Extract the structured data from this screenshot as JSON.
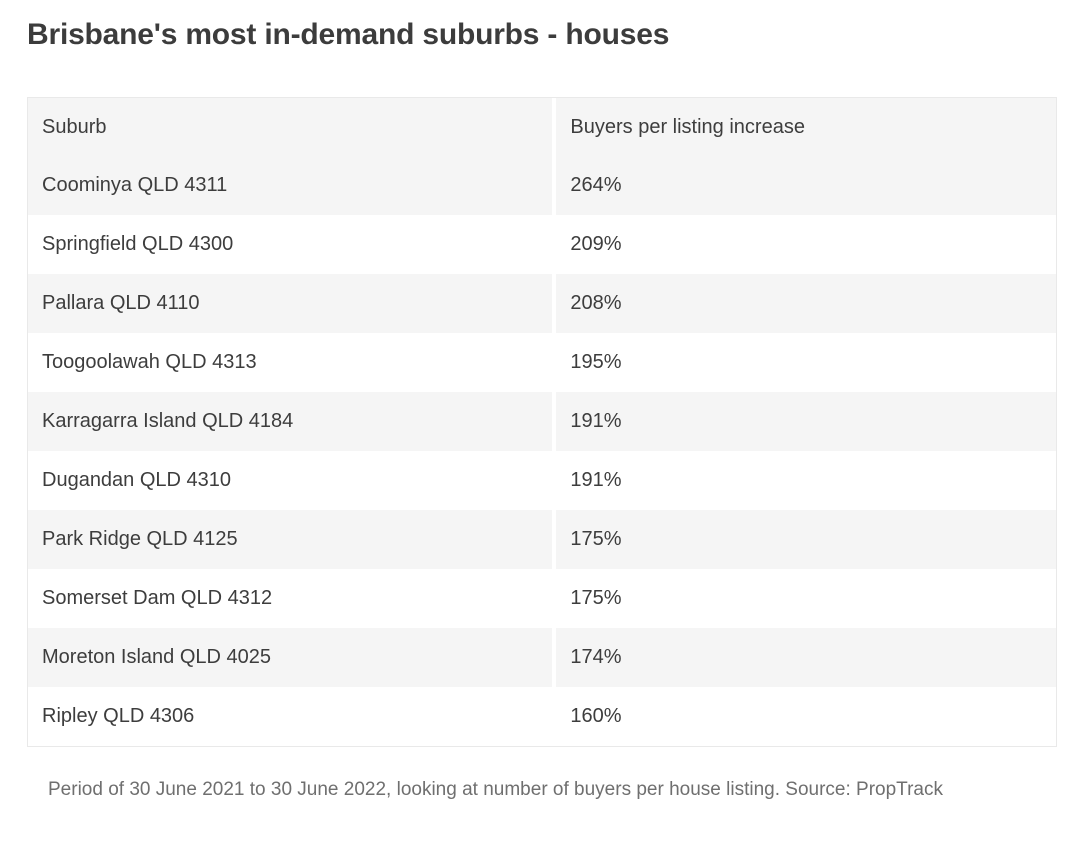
{
  "page": {
    "title": "Brisbane's most in-demand suburbs - houses",
    "caption": "Period of 30 June 2021 to 30 June 2022, looking at number of buyers per house listing. Source: PropTrack"
  },
  "table": {
    "columns": [
      "Suburb",
      "Buyers per listing increase"
    ],
    "rows": [
      {
        "suburb": "Coominya QLD 4311",
        "increase": "264%"
      },
      {
        "suburb": "Springfield QLD 4300",
        "increase": "209%"
      },
      {
        "suburb": "Pallara QLD 4110",
        "increase": "208%"
      },
      {
        "suburb": "Toogoolawah QLD 4313",
        "increase": "195%"
      },
      {
        "suburb": "Karragarra Island QLD 4184",
        "increase": "191%"
      },
      {
        "suburb": "Dugandan QLD 4310",
        "increase": "191%"
      },
      {
        "suburb": "Park Ridge QLD 4125",
        "increase": "175%"
      },
      {
        "suburb": "Somerset Dam QLD 4312",
        "increase": "175%"
      },
      {
        "suburb": "Moreton Island QLD 4025",
        "increase": "174%"
      },
      {
        "suburb": "Ripley QLD 4306",
        "increase": "160%"
      }
    ]
  },
  "chart_data": {
    "type": "table",
    "title": "Brisbane's most in-demand suburbs - houses",
    "columns": [
      "Suburb",
      "Buyers per listing increase"
    ],
    "rows": [
      [
        "Coominya QLD 4311",
        "264%"
      ],
      [
        "Springfield QLD 4300",
        "209%"
      ],
      [
        "Pallara QLD 4110",
        "208%"
      ],
      [
        "Toogoolawah QLD 4313",
        "195%"
      ],
      [
        "Karragarra Island QLD 4184",
        "191%"
      ],
      [
        "Dugandan QLD 4310",
        "191%"
      ],
      [
        "Park Ridge QLD 4125",
        "175%"
      ],
      [
        "Somerset Dam QLD 4312",
        "175%"
      ],
      [
        "Moreton Island QLD 4025",
        "174%"
      ],
      [
        "Ripley QLD 4306",
        "160%"
      ]
    ],
    "values_numeric_percent": [
      264,
      209,
      208,
      195,
      191,
      191,
      175,
      175,
      174,
      160
    ],
    "source_note": "Period of 30 June 2021 to 30 June 2022, looking at number of buyers per house listing. Source: PropTrack"
  },
  "colors": {
    "background": "#ffffff",
    "row_alt_background": "#f5f5f5",
    "header_background": "#f5f5f5",
    "text_primary": "#3d3d3d",
    "title_text": "#3c3c3c",
    "caption_text": "#6f6f6f",
    "table_border": "#e9e9e9",
    "column_gutter": "#ffffff"
  }
}
